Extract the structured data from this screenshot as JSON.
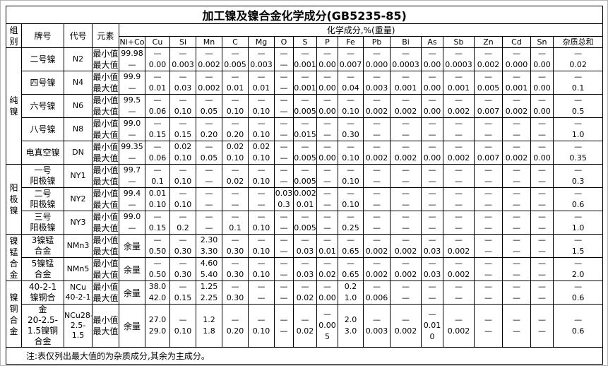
{
  "title": "加工镍及镍合金化学成分(GB5235-85)",
  "note": "注:表仅列出最大值的为杂质成分,其余为主成分。",
  "columns": {
    "group": "组\n别",
    "grade": "牌号",
    "code": "代号",
    "element": "元素",
    "comp_header": "化学成分,%(重量)",
    "elements": [
      "Ni+Co",
      "Cu",
      "Si",
      "Mn",
      "C",
      "Mg",
      "O",
      "S",
      "P",
      "Fe",
      "Pb",
      "Bi",
      "As",
      "Sb",
      "Zn",
      "Cd",
      "Sn",
      "杂质总和"
    ]
  },
  "row_labels": {
    "min": "最小值",
    "max": "最大值"
  },
  "rows": [
    {
      "group": {
        "label": "纯\n镍",
        "span": 5
      },
      "name": "二号镍",
      "code": "N2",
      "cells": [
        [
          "99.98",
          "—"
        ],
        [
          "—",
          "0.00"
        ],
        [
          "—",
          "0.003"
        ],
        [
          "—",
          "0.002"
        ],
        [
          "—",
          "0.005"
        ],
        [
          "—",
          "0.003"
        ],
        [
          "—",
          "—"
        ],
        [
          "—",
          "0.001"
        ],
        [
          "—",
          "0.00"
        ],
        [
          "—",
          "0.007"
        ],
        [
          "—",
          "0.000"
        ],
        [
          "—",
          "0.0003"
        ],
        [
          "—",
          "0.00"
        ],
        [
          "—",
          "0.0003"
        ],
        [
          "—",
          "0.002"
        ],
        [
          "—",
          "0.000"
        ],
        [
          "—",
          "0.00"
        ],
        [
          "—",
          "0.02"
        ]
      ]
    },
    {
      "name": "四号镍",
      "code": "N4",
      "cells": [
        [
          "99.9",
          "—"
        ],
        [
          "—",
          "0.01"
        ],
        [
          "—",
          "0.03"
        ],
        [
          "—",
          "0.002"
        ],
        [
          "—",
          "0.01"
        ],
        [
          "—",
          "0.01"
        ],
        [
          "—",
          "—"
        ],
        [
          "—",
          "0.001"
        ],
        [
          "—",
          "0.00"
        ],
        [
          "—",
          "0.04"
        ],
        [
          "—",
          "0.003"
        ],
        [
          "—",
          "0.001"
        ],
        [
          "—",
          "0.00"
        ],
        [
          "—",
          "0.001"
        ],
        [
          "—",
          "0.005"
        ],
        [
          "—",
          "0.001"
        ],
        [
          "—",
          "0.00"
        ],
        [
          "—",
          "0.1"
        ]
      ]
    },
    {
      "name": "六号镍",
      "code": "N6",
      "cells": [
        [
          "99.5",
          "—"
        ],
        [
          "—",
          "0.06"
        ],
        [
          "—",
          "0.10"
        ],
        [
          "—",
          "0.05"
        ],
        [
          "—",
          "0.10"
        ],
        [
          "—",
          "0.10"
        ],
        [
          "—",
          "—"
        ],
        [
          "—",
          "0.005"
        ],
        [
          "—",
          "0.00"
        ],
        [
          "—",
          "0.10"
        ],
        [
          "—",
          "0.002"
        ],
        [
          "—",
          "0.002"
        ],
        [
          "—",
          "0.00"
        ],
        [
          "—",
          "0.002"
        ],
        [
          "—",
          "0.007"
        ],
        [
          "—",
          "0.002"
        ],
        [
          "—",
          "0.00"
        ],
        [
          "—",
          "0.5"
        ]
      ]
    },
    {
      "name": "八号镍",
      "code": "N8",
      "cells": [
        [
          "99.0",
          "—"
        ],
        [
          "—",
          "0.15"
        ],
        [
          "—",
          "0.15"
        ],
        [
          "—",
          "0.20"
        ],
        [
          "—",
          "0.20"
        ],
        [
          "—",
          "0.10"
        ],
        [
          "—",
          "—"
        ],
        [
          "—",
          "0.015"
        ],
        [
          "—",
          "—"
        ],
        [
          "—",
          "0.30"
        ],
        [
          "—",
          "—"
        ],
        [
          "—",
          "—"
        ],
        [
          "—",
          "—"
        ],
        [
          "—",
          "—"
        ],
        [
          "—",
          "—"
        ],
        [
          "—",
          "—"
        ],
        [
          "—",
          "—"
        ],
        [
          "—",
          "1.0"
        ]
      ]
    },
    {
      "name": "电真空镍",
      "code": "DN",
      "cells": [
        [
          "99.35",
          "—"
        ],
        [
          "—",
          "0.06"
        ],
        [
          "0.02",
          "0.10"
        ],
        [
          "—",
          "0.05"
        ],
        [
          "0.02",
          "0.10"
        ],
        [
          "0.02",
          "0.10"
        ],
        [
          "—",
          "—"
        ],
        [
          "—",
          "0.005"
        ],
        [
          "—",
          "0.00"
        ],
        [
          "—",
          "0.10"
        ],
        [
          "—",
          "0.002"
        ],
        [
          "—",
          "0.002"
        ],
        [
          "—",
          "0.00"
        ],
        [
          "—",
          "0.002"
        ],
        [
          "—",
          "0.007"
        ],
        [
          "—",
          "0.002"
        ],
        [
          "—",
          "0.00"
        ],
        [
          "—",
          "0.35"
        ]
      ]
    },
    {
      "group": {
        "label": "阳\n极\n镍",
        "span": 3
      },
      "name": "一号\n阳极镍",
      "code": "NY1",
      "cells": [
        [
          "99.7",
          "—"
        ],
        [
          "—",
          "0.1"
        ],
        [
          "—",
          "0.10"
        ],
        [
          "—",
          "—"
        ],
        [
          "—",
          "0.02"
        ],
        [
          "—",
          "0.10"
        ],
        [
          "—",
          "—"
        ],
        [
          "—",
          "0.005"
        ],
        [
          "—",
          "—"
        ],
        [
          "—",
          "0.10"
        ],
        [
          "—",
          "—"
        ],
        [
          "—",
          "—"
        ],
        [
          "—",
          "—"
        ],
        [
          "—",
          "—"
        ],
        [
          "—",
          "—"
        ],
        [
          "—",
          "—"
        ],
        [
          "—",
          "—"
        ],
        [
          "—",
          "0.3"
        ]
      ]
    },
    {
      "name": "二号\n阳极镍",
      "code": "NY2",
      "cells": [
        [
          "99.4",
          "—"
        ],
        [
          "0.01",
          "0.10"
        ],
        [
          "—",
          "0.10"
        ],
        [
          "—",
          "—"
        ],
        [
          "—",
          "—"
        ],
        [
          "—",
          "—"
        ],
        [
          "0.03",
          "0.3"
        ],
        [
          "0.002",
          "0.01"
        ],
        [
          "—",
          "—"
        ],
        [
          "—",
          "0.10"
        ],
        [
          "—",
          "—"
        ],
        [
          "—",
          "—"
        ],
        [
          "—",
          "—"
        ],
        [
          "—",
          "—"
        ],
        [
          "—",
          "—"
        ],
        [
          "—",
          "—"
        ],
        [
          "—",
          "—"
        ],
        [
          "—",
          "0.6"
        ]
      ]
    },
    {
      "name": "三号\n阳极镍",
      "code": "NY3",
      "cells": [
        [
          "99.0",
          "—"
        ],
        [
          "—",
          "0.15"
        ],
        [
          "—",
          "0.2"
        ],
        [
          "—",
          "—"
        ],
        [
          "—",
          "0.1"
        ],
        [
          "—",
          "0.10"
        ],
        [
          "—",
          "—"
        ],
        [
          "—",
          "0.005"
        ],
        [
          "—",
          "—"
        ],
        [
          "—",
          "0.25"
        ],
        [
          "—",
          "—"
        ],
        [
          "—",
          "—"
        ],
        [
          "—",
          "—"
        ],
        [
          "—",
          "—"
        ],
        [
          "—",
          "—"
        ],
        [
          "—",
          "—"
        ],
        [
          "—",
          "—"
        ],
        [
          "—",
          "1.0"
        ]
      ]
    },
    {
      "group": {
        "label": "镍\n锰\n合\n金",
        "span": 2
      },
      "name": "3镍锰\n合金",
      "code": "NMn3",
      "cells": [
        [
          "余量"
        ],
        [
          "—",
          "0.50"
        ],
        [
          "—",
          "0.30"
        ],
        [
          "2.30",
          "3.30"
        ],
        [
          "—",
          "0.30"
        ],
        [
          "—",
          "0.10"
        ],
        [
          "—",
          "—"
        ],
        [
          "—",
          "0.03"
        ],
        [
          "—",
          "0.01"
        ],
        [
          "—",
          "0.65"
        ],
        [
          "—",
          "0.002"
        ],
        [
          "—",
          "0.002"
        ],
        [
          "—",
          "0.03"
        ],
        [
          "—",
          "0.002"
        ],
        [
          "—",
          "—"
        ],
        [
          "—",
          "—"
        ],
        [
          "—",
          "—"
        ],
        [
          "—",
          "1.5"
        ]
      ]
    },
    {
      "name": "5镍锰\n合金",
      "code": "NMn5",
      "cells": [
        [
          "余量"
        ],
        [
          "—",
          "0.50"
        ],
        [
          "—",
          "0.30"
        ],
        [
          "4.60",
          "5.40"
        ],
        [
          "—",
          "0.30"
        ],
        [
          "—",
          "0.10"
        ],
        [
          "—",
          "—"
        ],
        [
          "—",
          "0.03"
        ],
        [
          "—",
          "0.02"
        ],
        [
          "—",
          "0.65"
        ],
        [
          "—",
          "0.002"
        ],
        [
          "—",
          "0.002"
        ],
        [
          "—",
          "0.03"
        ],
        [
          "—",
          "0.002"
        ],
        [
          "—",
          "—"
        ],
        [
          "—",
          "—"
        ],
        [
          "—",
          "—"
        ],
        [
          "—",
          "2.0"
        ]
      ]
    },
    {
      "group": {
        "label": "镍\n铜\n合\n金",
        "span": 2
      },
      "name": "40-2-1\n镍铜合",
      "code": "NCu\n40-2-1",
      "cells": [
        [
          "余量"
        ],
        [
          "38.0",
          "42.0"
        ],
        [
          "—",
          "0.15"
        ],
        [
          "1.25",
          "2.25"
        ],
        [
          "—",
          "0.30"
        ],
        [
          "—",
          "—"
        ],
        [
          "—",
          "—"
        ],
        [
          "—",
          "0.02"
        ],
        [
          "—",
          "0.00"
        ],
        [
          "0.2",
          "1.0"
        ],
        [
          "—",
          "0.006"
        ],
        [
          "—",
          "—"
        ],
        [
          "—",
          "—"
        ],
        [
          "—",
          "—"
        ],
        [
          "—",
          "—"
        ],
        [
          "—",
          "—"
        ],
        [
          "—",
          "—"
        ],
        [
          "—",
          "0.6"
        ]
      ]
    },
    {
      "name": "金\n20-2.5-\n1.5镍铜\n合金",
      "code": "NCu28-\n2.5-\n1.5",
      "cells": [
        [
          "余量"
        ],
        [
          "27.0",
          "29.0"
        ],
        [
          "—",
          "0.10"
        ],
        [
          "1.2",
          "1.8"
        ],
        [
          "—",
          "0.20"
        ],
        [
          "—",
          "0.10"
        ],
        [
          "—",
          "—"
        ],
        [
          "—",
          "0.02"
        ],
        [
          "—",
          "0.00\n5"
        ],
        [
          "2.0",
          "3.0"
        ],
        [
          "—",
          "0.003"
        ],
        [
          "—",
          "0.002"
        ],
        [
          "—",
          "0.01\n0"
        ],
        [
          "—",
          "0.002"
        ],
        [
          "—",
          "—"
        ],
        [
          "—",
          "—"
        ],
        [
          "—",
          "—"
        ],
        [
          "—",
          "0.6"
        ]
      ]
    }
  ]
}
